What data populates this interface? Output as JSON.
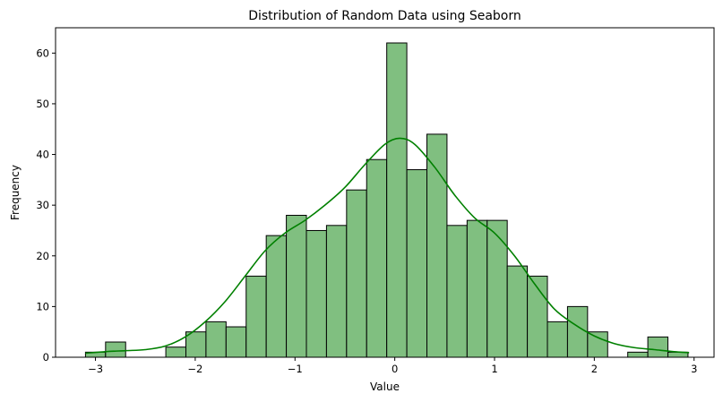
{
  "chart_data": {
    "type": "bar",
    "title": "Distribution of Random Data using Seaborn",
    "xlabel": "Value",
    "ylabel": "Frequency",
    "xlim": [
      -3.4,
      3.2
    ],
    "ylim": [
      0,
      65
    ],
    "x_ticks": [
      -3,
      -2,
      -1,
      0,
      1,
      2,
      3
    ],
    "x_tick_labels": [
      "−3",
      "−2",
      "−1",
      "0",
      "1",
      "2",
      "3"
    ],
    "y_ticks": [
      0,
      10,
      20,
      30,
      40,
      50,
      60
    ],
    "y_tick_labels": [
      "0",
      "10",
      "20",
      "30",
      "40",
      "50",
      "60"
    ],
    "grid": false,
    "bin_start": -3.1,
    "bin_width": 0.2013,
    "values": [
      1,
      3,
      0,
      0,
      2,
      5,
      7,
      6,
      16,
      24,
      28,
      25,
      26,
      33,
      39,
      62,
      37,
      44,
      26,
      27,
      27,
      18,
      16,
      7,
      10,
      5,
      0,
      1,
      4,
      1
    ],
    "bar_color": "#80bf80",
    "edge_color": "#000000",
    "kde": {
      "name": "",
      "color": "#008000",
      "x": [
        -3.1,
        -2.9,
        -2.7,
        -2.5,
        -2.3,
        -2.1,
        -1.9,
        -1.7,
        -1.5,
        -1.3,
        -1.1,
        -0.9,
        -0.7,
        -0.5,
        -0.3,
        -0.1,
        0.05,
        0.2,
        0.4,
        0.6,
        0.8,
        1.0,
        1.2,
        1.4,
        1.6,
        1.8,
        2.0,
        2.2,
        2.4,
        2.6,
        2.8,
        2.95
      ],
      "y": [
        0.8,
        1.1,
        1.3,
        1.5,
        2.2,
        4.0,
        7.0,
        11.0,
        16.0,
        21.0,
        24.5,
        27.0,
        30.0,
        33.5,
        38.0,
        42.0,
        43.2,
        42.0,
        37.5,
        32.0,
        27.5,
        24.5,
        20.0,
        14.5,
        9.5,
        6.5,
        4.2,
        2.7,
        1.9,
        1.5,
        1.1,
        0.9
      ]
    }
  }
}
